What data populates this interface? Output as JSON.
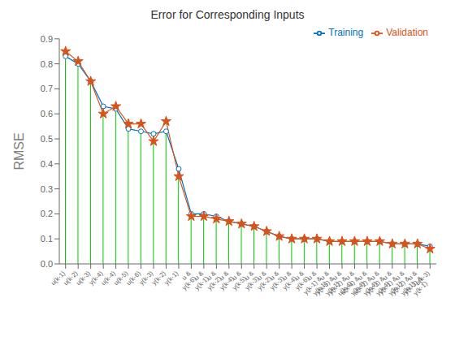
{
  "chart_data": {
    "type": "line",
    "title": "Error for Corresponding Inputs",
    "ylabel": "RMSE",
    "categories": [
      "u(k-1)",
      "u(k-2)",
      "u(k-3)",
      "y(k-4)",
      "u(k-4)",
      "u(k-5)",
      "u(k-6)",
      "y(k-3)",
      "y(k-2)",
      "y(k-1)",
      "u &\ny(k-6)",
      "u &\ny(k-1)",
      "u &\ny(k-2)",
      "u &\ny(k-4)",
      "u &\ny(k-5)",
      "u &\ny(k-3)",
      "u &\ny(k-2)",
      "u &\ny(k-3)",
      "u &\ny(k-4)",
      "u &\ny(k-6)",
      "u &\ny(k-1) &\ny(k-1)",
      "u &\ny(k-5) &\ny(k-1)",
      "u &\ny(k-2) &\nu(k-4)",
      "u &\nu(k-4) &\ny(k-4)",
      "u &\nu(k-2) &\ny(k-4)",
      "u &\ny(k-3) &\ny(k-4)",
      "u &\ny(k-1) &\ny(k-1)",
      "u &\ny(k-2) &\ny(k-1)",
      "u &\ny(k-3) &\ny(k-1)",
      "u(k-3)"
    ],
    "series": [
      {
        "type": "stem",
        "color": "#00CC00",
        "line_style": "solid",
        "values": [
          0.83,
          0.8,
          0.73,
          0.63,
          0.62,
          0.54,
          0.53,
          0.52,
          0.53,
          0.38,
          0.2,
          0.2,
          0.19,
          0.17,
          0.16,
          0.15,
          0.13,
          0.11,
          0.1,
          0.1,
          0.1,
          0.09,
          0.09,
          0.09,
          0.09,
          0.09,
          0.08,
          0.08,
          0.08,
          0.07
        ]
      },
      {
        "name": "Training",
        "type": "line",
        "color": "#0072BD",
        "marker": "circle",
        "line_style": "solid",
        "values": [
          0.83,
          0.8,
          0.73,
          0.63,
          0.62,
          0.54,
          0.53,
          0.52,
          0.53,
          0.38,
          0.2,
          0.2,
          0.19,
          0.17,
          0.16,
          0.15,
          0.13,
          0.11,
          0.1,
          0.1,
          0.1,
          0.09,
          0.09,
          0.09,
          0.09,
          0.09,
          0.08,
          0.08,
          0.08,
          0.07
        ]
      },
      {
        "name": "Validation",
        "type": "line",
        "color": "#D95319",
        "marker": "star",
        "line_style": "solid",
        "values": [
          0.85,
          0.81,
          0.73,
          0.6,
          0.63,
          0.56,
          0.56,
          0.49,
          0.57,
          0.35,
          0.19,
          0.19,
          0.18,
          0.17,
          0.16,
          0.15,
          0.13,
          0.11,
          0.1,
          0.1,
          0.1,
          0.09,
          0.09,
          0.09,
          0.09,
          0.09,
          0.08,
          0.08,
          0.08,
          0.06
        ]
      }
    ],
    "ylim": [
      0,
      0.9
    ],
    "yticks": [
      {
        "value": 0,
        "label": "0.0"
      },
      0.1,
      0.2,
      0.3,
      0.4,
      0.5,
      0.6,
      0.7,
      0.8,
      0.9
    ],
    "grid": false,
    "legend": "upper right"
  }
}
